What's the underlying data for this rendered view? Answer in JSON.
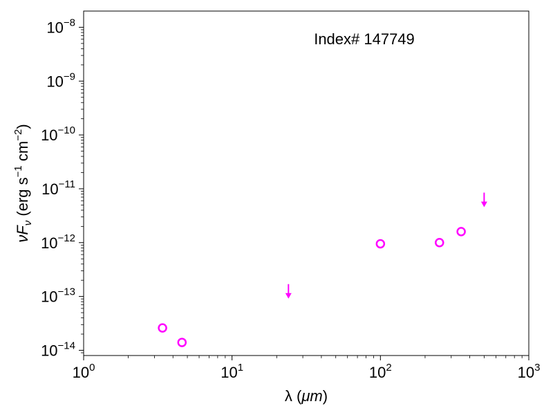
{
  "chart_data": {
    "type": "scatter",
    "title": "",
    "annotation": "Index# 147749",
    "xlabel": {
      "prefix": "λ (",
      "unit": "μm",
      "suffix": ")"
    },
    "ylabel": {
      "lead": "νF",
      "sub": "ν",
      "open": " (erg s",
      "exp1": "−1",
      "mid": " cm",
      "exp2": "−2",
      "close": ")"
    },
    "xscale": "log",
    "yscale": "log",
    "xlim": [
      1,
      1000
    ],
    "ylim": [
      8e-15,
      2e-08
    ],
    "grid": false,
    "x_ticks": [
      {
        "base": "10",
        "exp": "0",
        "value": 1
      },
      {
        "base": "10",
        "exp": "1",
        "value": 10
      },
      {
        "base": "10",
        "exp": "2",
        "value": 100
      },
      {
        "base": "10",
        "exp": "3",
        "value": 1000
      }
    ],
    "y_ticks": [
      {
        "base": "10",
        "exp": "−14",
        "value": 1e-14
      },
      {
        "base": "10",
        "exp": "−13",
        "value": 1e-13
      },
      {
        "base": "10",
        "exp": "−12",
        "value": 1e-12
      },
      {
        "base": "10",
        "exp": "−11",
        "value": 1e-11
      },
      {
        "base": "10",
        "exp": "−10",
        "value": 1e-10
      },
      {
        "base": "10",
        "exp": "−9",
        "value": 1e-09
      },
      {
        "base": "10",
        "exp": "−8",
        "value": 1e-08
      }
    ],
    "series": [
      {
        "marker": "open-circle",
        "color": "#ff00ff",
        "x": [
          3.4,
          4.6,
          100,
          250,
          350
        ],
        "y": [
          2.6e-14,
          1.4e-14,
          9.5e-13,
          1e-12,
          1.6e-12
        ]
      },
      {
        "marker": "upper-limit-arrow",
        "color": "#ff00ff",
        "x": [
          24,
          500
        ],
        "y": [
          1.3e-13,
          6.5e-12
        ]
      }
    ]
  }
}
